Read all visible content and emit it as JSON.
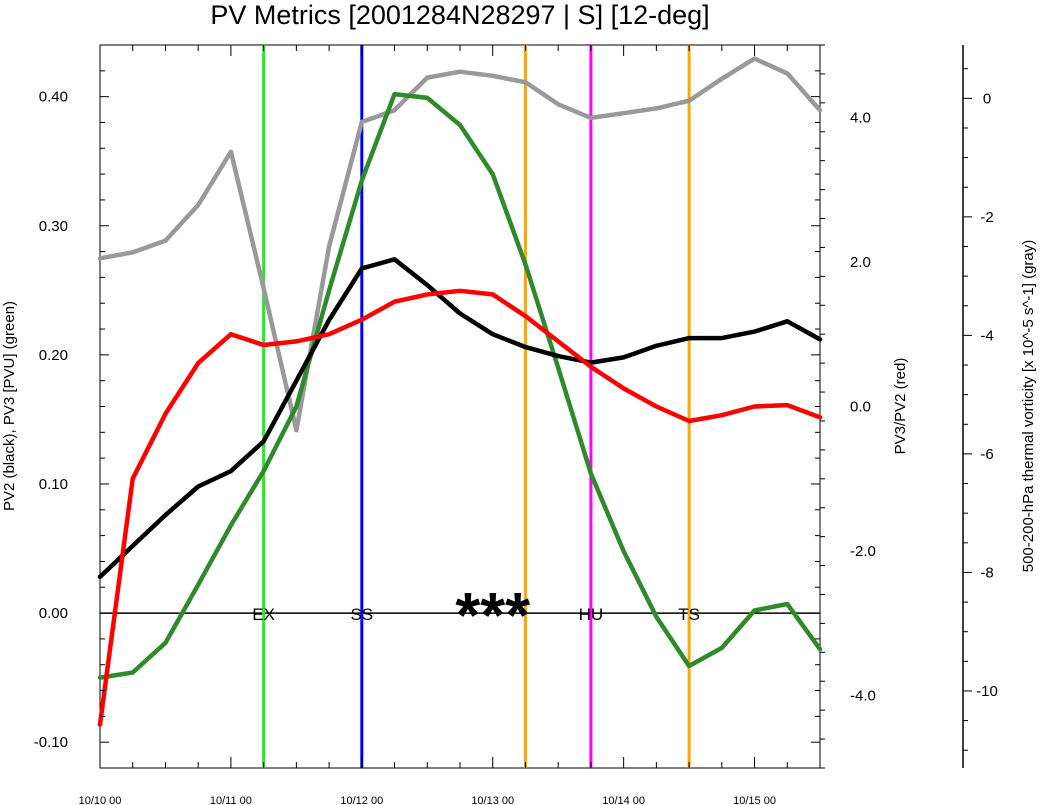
{
  "chart_data": {
    "type": "line",
    "title": "PV Metrics [2001284N28297 | S] [12-deg]",
    "x_tick_labels": [
      "10/10 00",
      "10/11 00",
      "10/12 00",
      "10/13 00",
      "10/14 00",
      "10/15 00"
    ],
    "xlim_hours": [
      0,
      132
    ],
    "left_axis": {
      "label": "PV2 (black), PV3 [PVU] (green)",
      "range": [
        -0.12,
        0.44
      ],
      "ticks": [
        -0.1,
        0.0,
        0.1,
        0.2,
        0.3,
        0.4
      ],
      "tick_labels": [
        "-0.10",
        "0.00",
        "0.10",
        "0.20",
        "0.30",
        "0.40"
      ]
    },
    "right_axis": {
      "label": "PV3/PV2 (red)",
      "range": [
        -5.0,
        5.0
      ],
      "ticks": [
        -4.0,
        -2.0,
        0.0,
        2.0,
        4.0
      ],
      "tick_labels": [
        "-4.0",
        "-2.0",
        "0.0",
        "2.0",
        "4.0"
      ]
    },
    "far_right_axis": {
      "label": "500-200-hPa thermal vorticity [x 10^-5 s^-1] (gray)",
      "range": [
        -11.3,
        0.9
      ],
      "ticks": [
        -10,
        -8,
        -6,
        -4,
        -2,
        0
      ],
      "tick_labels": [
        "-10",
        "-8",
        "-6",
        "-4",
        "-2",
        "0"
      ]
    },
    "series": [
      {
        "name": "PV2",
        "color": "#000000",
        "axis": "left",
        "x": [
          0,
          6,
          12,
          18,
          24,
          30,
          36,
          42,
          48,
          54,
          60,
          66,
          72,
          78,
          84,
          90,
          96,
          102,
          108,
          114,
          120,
          126,
          132
        ],
        "values": [
          0.028,
          0.052,
          0.076,
          0.098,
          0.11,
          0.133,
          0.18,
          0.227,
          0.267,
          0.274,
          0.254,
          0.232,
          0.216,
          0.206,
          0.199,
          0.194,
          0.198,
          0.207,
          0.213,
          0.213,
          0.218,
          0.226,
          0.212
        ]
      },
      {
        "name": "PV3",
        "color": "#2e8b2a",
        "axis": "left",
        "x": [
          0,
          6,
          12,
          18,
          24,
          30,
          36,
          42,
          48,
          54,
          60,
          66,
          72,
          78,
          84,
          90,
          96,
          102,
          108,
          114,
          120,
          126,
          132
        ],
        "values": [
          -0.05,
          -0.046,
          -0.023,
          0.022,
          0.068,
          0.11,
          0.16,
          0.25,
          0.335,
          0.402,
          0.399,
          0.378,
          0.34,
          0.27,
          0.19,
          0.108,
          0.048,
          -0.003,
          -0.041,
          -0.027,
          0.002,
          0.007,
          -0.028
        ]
      },
      {
        "name": "PV3/PV2",
        "color": "#ff0000",
        "axis": "right",
        "x": [
          0,
          6,
          12,
          18,
          24,
          30,
          36,
          42,
          48,
          54,
          60,
          66,
          72,
          78,
          84,
          90,
          96,
          102,
          108,
          114,
          120,
          126,
          132
        ],
        "values": [
          -4.4,
          -1.0,
          -0.1,
          0.6,
          1.0,
          0.85,
          0.9,
          1.0,
          1.2,
          1.45,
          1.55,
          1.6,
          1.55,
          1.25,
          0.9,
          0.55,
          0.25,
          0.0,
          -0.2,
          -0.12,
          0.0,
          0.02,
          -0.15
        ]
      },
      {
        "name": "thermal vorticity",
        "color": "#999999",
        "axis": "far_right",
        "x": [
          0,
          6,
          12,
          18,
          24,
          30,
          36,
          42,
          48,
          54,
          60,
          66,
          72,
          78,
          84,
          90,
          96,
          102,
          108,
          114,
          120,
          126,
          132
        ],
        "values": [
          -2.7,
          -2.6,
          -2.4,
          -1.8,
          -0.9,
          -3.2,
          -5.6,
          -2.5,
          -0.4,
          -0.2,
          0.35,
          0.45,
          0.38,
          0.27,
          -0.1,
          -0.33,
          -0.25,
          -0.17,
          -0.04,
          0.33,
          0.67,
          0.42,
          -0.2
        ]
      }
    ],
    "vertical_lines": [
      {
        "x": 30,
        "color": "#22ee22",
        "label": "EX"
      },
      {
        "x": 48,
        "color": "#0000ff",
        "label": "SS"
      },
      {
        "x": 78,
        "color": "#ffa500",
        "label": ""
      },
      {
        "x": 90,
        "color": "#ff00ff",
        "label": "HU"
      },
      {
        "x": 108,
        "color": "#ffa500",
        "label": "TS"
      }
    ],
    "marker": {
      "text": "***",
      "x": 72
    },
    "zero_line": true,
    "grid": false
  }
}
